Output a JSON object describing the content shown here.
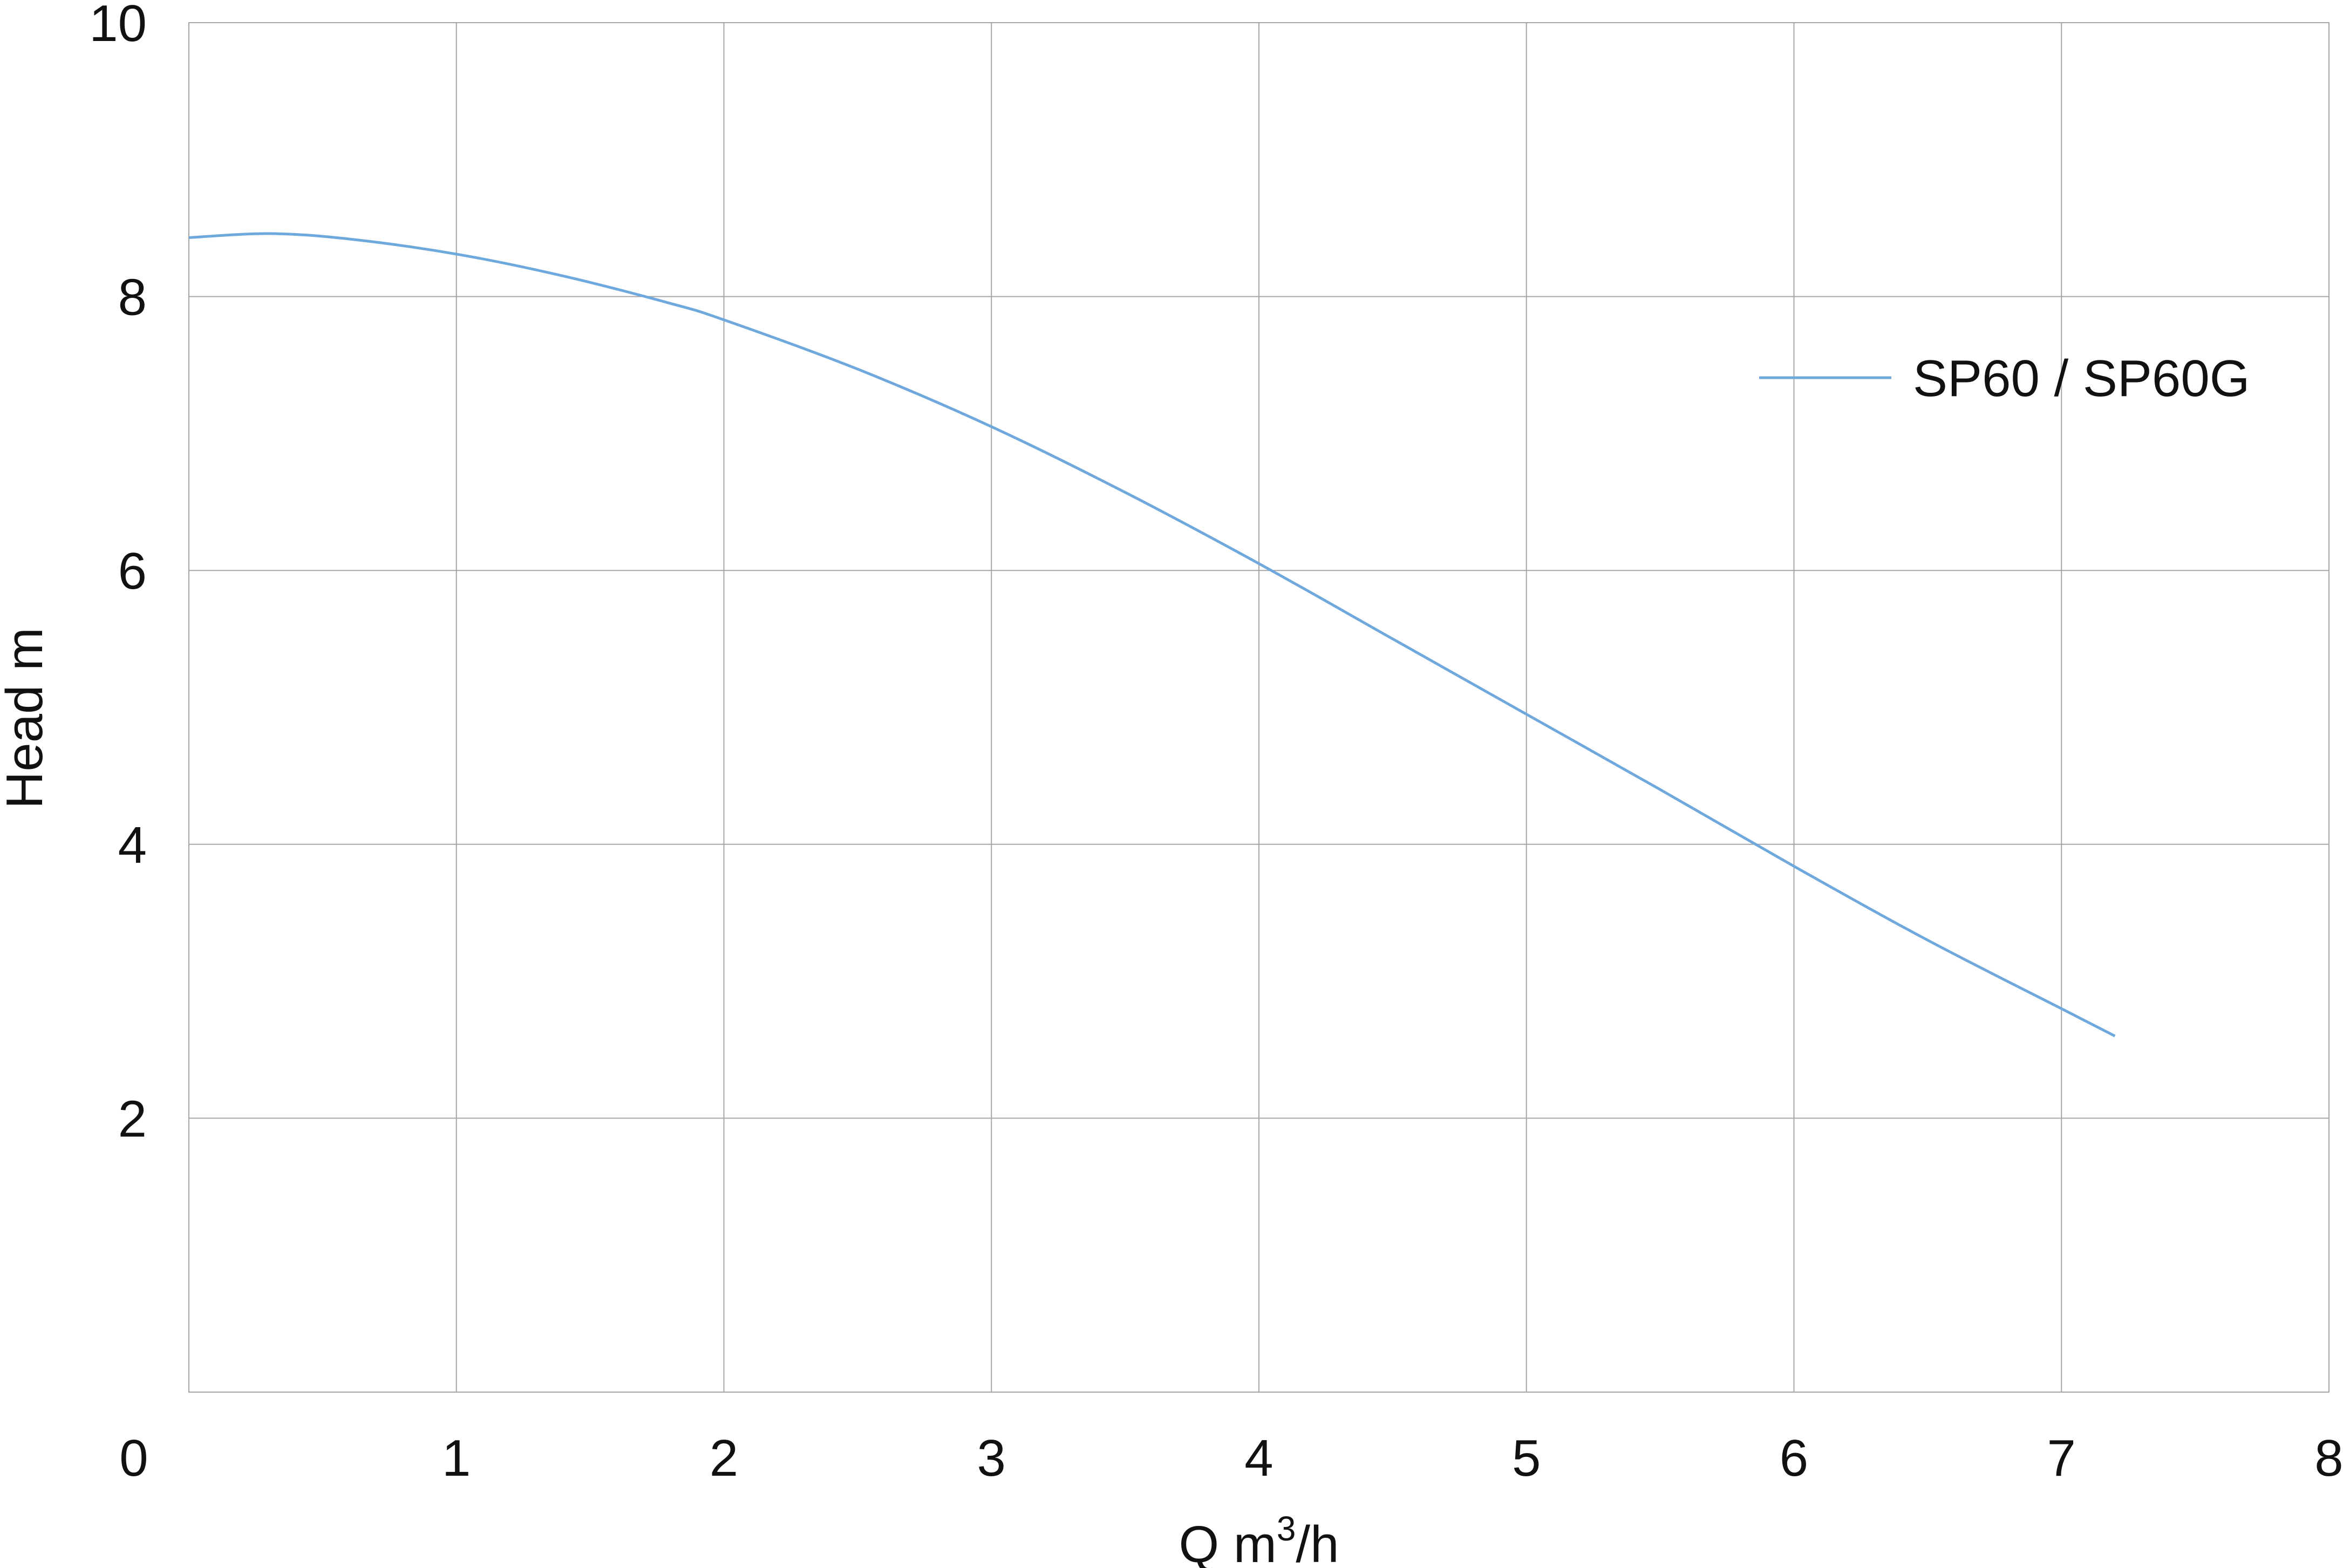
{
  "chart_data": {
    "type": "line",
    "title": "",
    "xlabel": "Q m",
    "xlabel_superscript": "3",
    "xlabel_suffix": "/h",
    "ylabel": "Head m",
    "xlim": [
      0,
      8
    ],
    "ylim": [
      0,
      10
    ],
    "x_ticks": [
      "0",
      "1",
      "2",
      "3",
      "4",
      "5",
      "6",
      "7",
      "8"
    ],
    "y_ticks": [
      "2",
      "4",
      "6",
      "8",
      "10"
    ],
    "grid": true,
    "legend_position": "top-right",
    "series": [
      {
        "name": "SP60 / SP60G",
        "color": "#6fa8dc",
        "x": [
          0,
          0.3,
          0.6,
          1.0,
          1.4,
          1.8,
          2.0,
          2.5,
          3.0,
          3.5,
          4.0,
          4.5,
          5.0,
          5.5,
          6.0,
          6.5,
          7.0,
          7.2
        ],
        "y": [
          8.43,
          8.46,
          8.42,
          8.31,
          8.15,
          7.95,
          7.83,
          7.47,
          7.05,
          6.57,
          6.05,
          5.5,
          4.95,
          4.4,
          3.84,
          3.3,
          2.8,
          2.6
        ]
      }
    ]
  }
}
